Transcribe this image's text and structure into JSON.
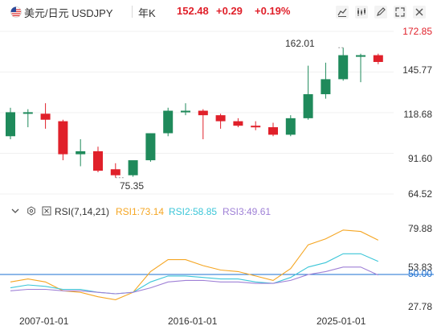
{
  "header": {
    "title": "美元/日元 USDJPY",
    "period": "年K",
    "price": "152.48",
    "change": "+0.29",
    "change_pct": "+0.19%",
    "accent_up": "#e0202a",
    "accent_down": "#1f8a5b",
    "toolbar": [
      "chart-line-icon",
      "chart-candle-icon",
      "pencil-icon",
      "expand-icon",
      "close-icon"
    ]
  },
  "main_axis": {
    "labels": [
      "172.85",
      "145.77",
      "118.68",
      "91.60",
      "64.52"
    ]
  },
  "annotations": {
    "high": "162.01",
    "low": "75.35"
  },
  "rsi": {
    "name": "RSI(7,14,21)",
    "rsi1": "RSI1:73.14",
    "rsi2": "RSI2:58.85",
    "rsi3": "RSI3:49.61",
    "colors": {
      "rsi1": "#f5a623",
      "rsi2": "#3cc6d8",
      "rsi3": "#9f80d6"
    },
    "axis_labels": [
      "79.88",
      "53.83",
      "50.00",
      "27.78"
    ],
    "reference_level": 50
  },
  "x_axis": {
    "labels": [
      "2007-01-01",
      "2016-01-01",
      "2025-01-01"
    ]
  },
  "chart_data": {
    "type": "candlestick",
    "ylim": [
      64.52,
      172.85
    ],
    "candles": [
      {
        "o": 103,
        "h": 122,
        "l": 101,
        "c": 119
      },
      {
        "o": 118,
        "h": 121,
        "l": 109,
        "c": 119
      },
      {
        "o": 118,
        "h": 125,
        "l": 108,
        "c": 114
      },
      {
        "o": 113,
        "h": 114,
        "l": 87,
        "c": 91
      },
      {
        "o": 91,
        "h": 101,
        "l": 83,
        "c": 93
      },
      {
        "o": 93,
        "h": 96,
        "l": 79,
        "c": 80
      },
      {
        "o": 81,
        "h": 85,
        "l": 75.35,
        "c": 77
      },
      {
        "o": 77,
        "h": 86,
        "l": 76,
        "c": 87
      },
      {
        "o": 87,
        "h": 105,
        "l": 86,
        "c": 105
      },
      {
        "o": 105,
        "h": 122,
        "l": 103,
        "c": 120
      },
      {
        "o": 120,
        "h": 125,
        "l": 117,
        "c": 120
      },
      {
        "o": 120,
        "h": 121,
        "l": 101,
        "c": 117
      },
      {
        "o": 117,
        "h": 118,
        "l": 108,
        "c": 113
      },
      {
        "o": 113,
        "h": 115,
        "l": 109,
        "c": 110
      },
      {
        "o": 110,
        "h": 113,
        "l": 107,
        "c": 109
      },
      {
        "o": 109,
        "h": 112,
        "l": 103,
        "c": 104
      },
      {
        "o": 104,
        "h": 117,
        "l": 103,
        "c": 115
      },
      {
        "o": 115,
        "h": 150,
        "l": 114,
        "c": 131
      },
      {
        "o": 131,
        "h": 152,
        "l": 128,
        "c": 141
      },
      {
        "o": 141,
        "h": 162.01,
        "l": 140,
        "c": 157
      },
      {
        "o": 157,
        "h": 158,
        "l": 139,
        "c": 157
      },
      {
        "o": 157,
        "h": 158,
        "l": 151,
        "c": 152.48
      }
    ],
    "rsi_y_range": [
      27.78,
      79.88
    ],
    "rsi1": [
      45,
      47,
      45,
      39,
      38,
      35,
      33,
      38,
      52,
      60,
      60,
      56,
      53,
      52,
      49,
      46,
      54,
      70,
      74,
      80,
      79,
      73.14
    ],
    "rsi2": [
      41,
      43,
      42,
      40,
      40,
      38,
      37,
      38,
      45,
      49,
      49,
      48,
      47,
      47,
      45,
      44,
      48,
      55,
      58,
      64,
      64,
      58.85
    ],
    "rsi3": [
      39,
      40,
      40,
      39,
      39,
      38,
      37,
      38,
      41,
      45,
      46,
      46,
      45,
      45,
      44,
      44,
      46,
      50,
      52,
      55,
      55,
      49.61
    ]
  }
}
